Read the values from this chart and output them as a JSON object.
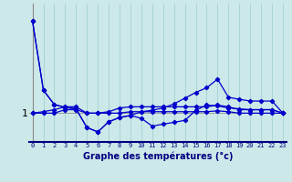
{
  "background_color": "#cce8e8",
  "line_color": "#0000cc",
  "grid_color": "#aad4d4",
  "axis_color": "#888888",
  "xlabel": "Graphe des températures (°c)",
  "x_ticks": [
    0,
    1,
    2,
    3,
    4,
    5,
    6,
    7,
    8,
    9,
    10,
    11,
    12,
    13,
    14,
    15,
    16,
    17,
    18,
    19,
    20,
    21,
    22,
    23
  ],
  "series1": [
    4.2,
    1.8,
    1.3,
    1.2,
    1.15,
    0.5,
    0.35,
    0.7,
    0.85,
    0.92,
    0.82,
    0.55,
    0.62,
    0.68,
    0.75,
    1.1,
    1.28,
    1.25,
    1.18,
    1.15,
    1.12,
    1.12,
    1.12,
    1.0
  ],
  "series2": [
    4.2,
    1.8,
    1.3,
    1.2,
    1.15,
    0.5,
    0.35,
    0.7,
    0.85,
    0.92,
    1.05,
    1.1,
    1.18,
    1.32,
    1.52,
    1.72,
    1.88,
    2.18,
    1.55,
    1.48,
    1.42,
    1.42,
    1.42,
    1.0
  ],
  "series3": [
    1.0,
    1.05,
    1.12,
    1.22,
    1.22,
    1.0,
    1.0,
    1.05,
    1.18,
    1.22,
    1.22,
    1.22,
    1.22,
    1.22,
    1.22,
    1.22,
    1.22,
    1.28,
    1.22,
    1.12,
    1.12,
    1.12,
    1.12,
    1.0
  ],
  "series4": [
    1.0,
    1.0,
    1.0,
    1.12,
    1.12,
    1.0,
    1.0,
    1.0,
    1.0,
    1.05,
    1.05,
    1.05,
    1.05,
    1.05,
    1.05,
    1.05,
    1.05,
    1.08,
    1.05,
    1.0,
    1.0,
    1.0,
    1.0,
    1.0
  ],
  "ylim_bottom": 0.0,
  "ylim_top": 4.8,
  "ytick_pos": 1.0,
  "ytick_label": "1"
}
